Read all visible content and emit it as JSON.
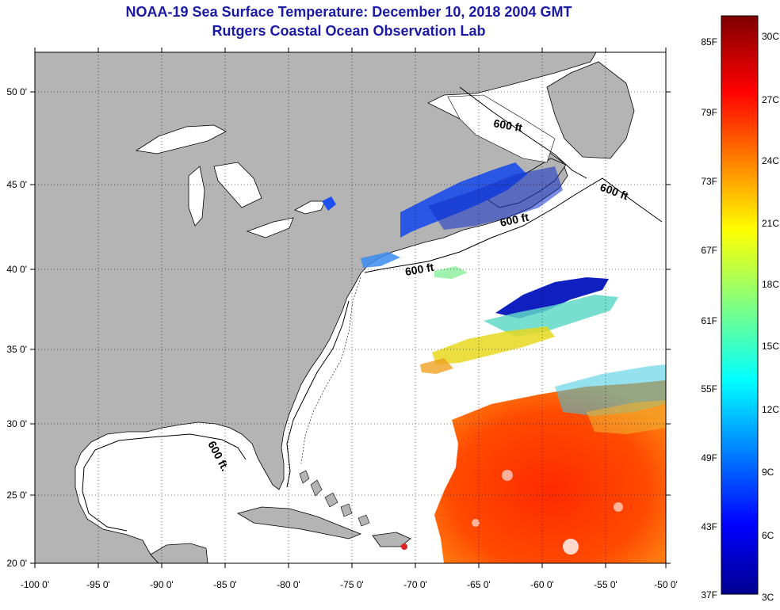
{
  "header": {
    "title": "NOAA-19 Sea Surface Temperature:  December 10, 2018 2004 GMT",
    "subtitle": "Rutgers Coastal Ocean Observation Lab"
  },
  "axes": {
    "lon_labels": [
      "-100 0'",
      "-95 0'",
      "-90 0'",
      "-85 0'",
      "-80 0'",
      "-75 0'",
      "-70 0'",
      "-65 0'",
      "-60 0'",
      "-55 0'",
      "-50 0'"
    ],
    "lat_labels": [
      "50 0'",
      "45 0'",
      "40 0'",
      "35 0'",
      "30 0'",
      "25 0'",
      "20 0'"
    ]
  },
  "isobath_labels": [
    "600 ft",
    "600 ft",
    "600 ft",
    "600 ft",
    "600 ft."
  ],
  "colorbar": {
    "fahrenheit_labels": [
      "85F",
      "79F",
      "73F",
      "67F",
      "61F",
      "55F",
      "49F",
      "43F",
      "37F"
    ],
    "celsius_labels": [
      "30C",
      "27C",
      "24C",
      "21C",
      "18C",
      "15C",
      "12C",
      "9C",
      "6C",
      "3C"
    ]
  },
  "colors": {
    "land": "#b4b4b4",
    "title": "#1a1aa6",
    "sst_cold": "#00008f",
    "sst_mid": "#80ff80",
    "sst_warm": "#ff3000",
    "sst_hot": "#7f0000"
  }
}
